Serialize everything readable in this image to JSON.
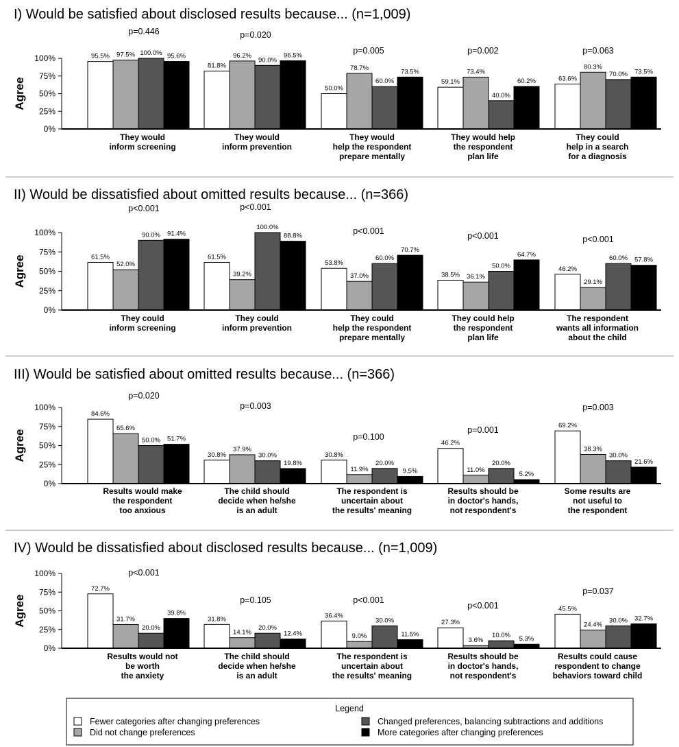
{
  "chart_data": [
    {
      "type": "bar",
      "title": "I) Would be satisfied about disclosed results because... (n=1,009)",
      "ylabel": "Agree",
      "ylim": [
        0,
        100
      ],
      "yticks": [
        "0%",
        "25%",
        "50%",
        "75%",
        "100%"
      ],
      "categories": [
        [
          "They would",
          "inform screening"
        ],
        [
          "They would",
          "inform prevention"
        ],
        [
          "They would",
          "help the respondent",
          "prepare mentally"
        ],
        [
          "They would help",
          "the respondent",
          "plan life"
        ],
        [
          "They could",
          "help in a search",
          "for a diagnosis"
        ]
      ],
      "p_values": [
        "p=0.446",
        "p=0.020",
        "p=0.005",
        "p=0.002",
        "p=0.063"
      ],
      "values": [
        [
          95.5,
          97.5,
          100.0,
          95.6
        ],
        [
          81.8,
          96.2,
          90.0,
          96.5
        ],
        [
          50.0,
          78.7,
          60.0,
          73.5
        ],
        [
          59.1,
          73.4,
          40.0,
          60.2
        ],
        [
          63.6,
          80.3,
          70.0,
          73.5
        ]
      ],
      "labels": [
        [
          "95.5%",
          "97.5%",
          "100.0%",
          "95.6%"
        ],
        [
          "81.8%",
          "96.2%",
          "90.0%",
          "96.5%"
        ],
        [
          "50.0%",
          "78.7%",
          "60.0%",
          "73.5%"
        ],
        [
          "59.1%",
          "73.4%",
          "40.0%",
          "60.2%"
        ],
        [
          "63.6%",
          "80.3%",
          "70.0%",
          "73.5%"
        ]
      ]
    },
    {
      "type": "bar",
      "title": "II) Would be dissatisfied about omitted results because... (n=366)",
      "ylabel": "Agree",
      "ylim": [
        0,
        100
      ],
      "yticks": [
        "0%",
        "25%",
        "50%",
        "75%",
        "100%"
      ],
      "categories": [
        [
          "They could",
          "inform screening"
        ],
        [
          "They could",
          "inform prevention"
        ],
        [
          "They could",
          "help the respondent",
          "prepare mentally"
        ],
        [
          "They could help",
          "the respondent",
          "plan life"
        ],
        [
          "The respondent",
          "wants all information",
          "about the child"
        ]
      ],
      "p_values": [
        "p<0.001",
        "p<0.001",
        "p<0.001",
        "p<0.001",
        "p<0.001"
      ],
      "values": [
        [
          61.5,
          52.0,
          90.0,
          91.4
        ],
        [
          61.5,
          39.2,
          100.0,
          88.8
        ],
        [
          53.8,
          37.0,
          60.0,
          70.7
        ],
        [
          38.5,
          36.1,
          50.0,
          64.7
        ],
        [
          46.2,
          29.1,
          60.0,
          57.8
        ]
      ],
      "labels": [
        [
          "61.5%",
          "52.0%",
          "90.0%",
          "91.4%"
        ],
        [
          "61.5%",
          "39.2%",
          "100.0%",
          "88.8%"
        ],
        [
          "53.8%",
          "37.0%",
          "60.0%",
          "70.7%"
        ],
        [
          "38.5%",
          "36.1%",
          "50.0%",
          "64.7%"
        ],
        [
          "46.2%",
          "29.1%",
          "60.0%",
          "57.8%"
        ]
      ]
    },
    {
      "type": "bar",
      "title": "III) Would be satisfied about omitted results because... (n=366)",
      "ylabel": "Agree",
      "ylim": [
        0,
        100
      ],
      "yticks": [
        "0%",
        "25%",
        "50%",
        "75%",
        "100%"
      ],
      "categories": [
        [
          "Results would make",
          "the respondent",
          "too anxious"
        ],
        [
          "The child should",
          "decide when he/she",
          "is an adult"
        ],
        [
          "The respondent is",
          "uncertain about",
          "the results' meaning"
        ],
        [
          "Results should be",
          "in doctor's hands,",
          "not respondent's"
        ],
        [
          "Some results are",
          "not useful to",
          "the respondent"
        ]
      ],
      "p_values": [
        "p=0.020",
        "p=0.003",
        "p=0.100",
        "p=0.001",
        "p=0.003"
      ],
      "values": [
        [
          84.6,
          65.6,
          50.0,
          51.7
        ],
        [
          30.8,
          37.9,
          30.0,
          19.8
        ],
        [
          30.8,
          11.9,
          20.0,
          9.5
        ],
        [
          46.2,
          11.0,
          20.0,
          5.2
        ],
        [
          69.2,
          38.3,
          30.0,
          21.6
        ]
      ],
      "labels": [
        [
          "84.6%",
          "65.6%",
          "50.0%",
          "51.7%"
        ],
        [
          "30.8%",
          "37.9%",
          "30.0%",
          "19.8%"
        ],
        [
          "30.8%",
          "11.9%",
          "20.0%",
          "9.5%"
        ],
        [
          "46.2%",
          "11.0%",
          "20.0%",
          "5.2%"
        ],
        [
          "69.2%",
          "38.3%",
          "30.0%",
          "21.6%"
        ]
      ]
    },
    {
      "type": "bar",
      "title": "IV) Would be dissatisfied about disclosed results because... (n=1,009)",
      "ylabel": "Agree",
      "ylim": [
        0,
        100
      ],
      "yticks": [
        "0%",
        "25%",
        "50%",
        "75%",
        "100%"
      ],
      "categories": [
        [
          "Results would not",
          "be worth",
          "the anxiety"
        ],
        [
          "The child should",
          "decide when he/she",
          "is an adult"
        ],
        [
          "The respondent is",
          "uncertain about",
          "the results' meaning"
        ],
        [
          "Results should be",
          "in doctor's hands,",
          "not respondent's"
        ],
        [
          "Results could cause",
          "respondent to change",
          "behaviors toward child"
        ]
      ],
      "p_values": [
        "p<0.001",
        "p=0.105",
        "p<0.001",
        "p<0.001",
        "p=0.037"
      ],
      "values": [
        [
          72.7,
          31.7,
          20.0,
          39.8
        ],
        [
          31.8,
          14.1,
          20.0,
          12.4
        ],
        [
          36.4,
          9.0,
          30.0,
          11.5
        ],
        [
          27.3,
          3.6,
          10.0,
          5.3
        ],
        [
          45.5,
          24.4,
          30.0,
          32.7
        ]
      ],
      "labels": [
        [
          "72.7%",
          "31.7%",
          "20.0%",
          "39.8%"
        ],
        [
          "31.8%",
          "14.1%",
          "20.0%",
          "12.4%"
        ],
        [
          "36.4%",
          "9.0%",
          "30.0%",
          "11.5%"
        ],
        [
          "27.3%",
          "3.6%",
          "10.0%",
          "5.3%"
        ],
        [
          "45.5%",
          "24.4%",
          "30.0%",
          "32.7%"
        ]
      ]
    }
  ],
  "legend": {
    "title": "Legend",
    "series": [
      {
        "name": "Fewer categories after changing preferences",
        "color": "#ffffff"
      },
      {
        "name": "Did not change preferences",
        "color": "#a6a6a6"
      },
      {
        "name": "Changed preferences, balancing subtractions and additions",
        "color": "#555555"
      },
      {
        "name": "More categories after changing preferences",
        "color": "#000000"
      }
    ]
  }
}
